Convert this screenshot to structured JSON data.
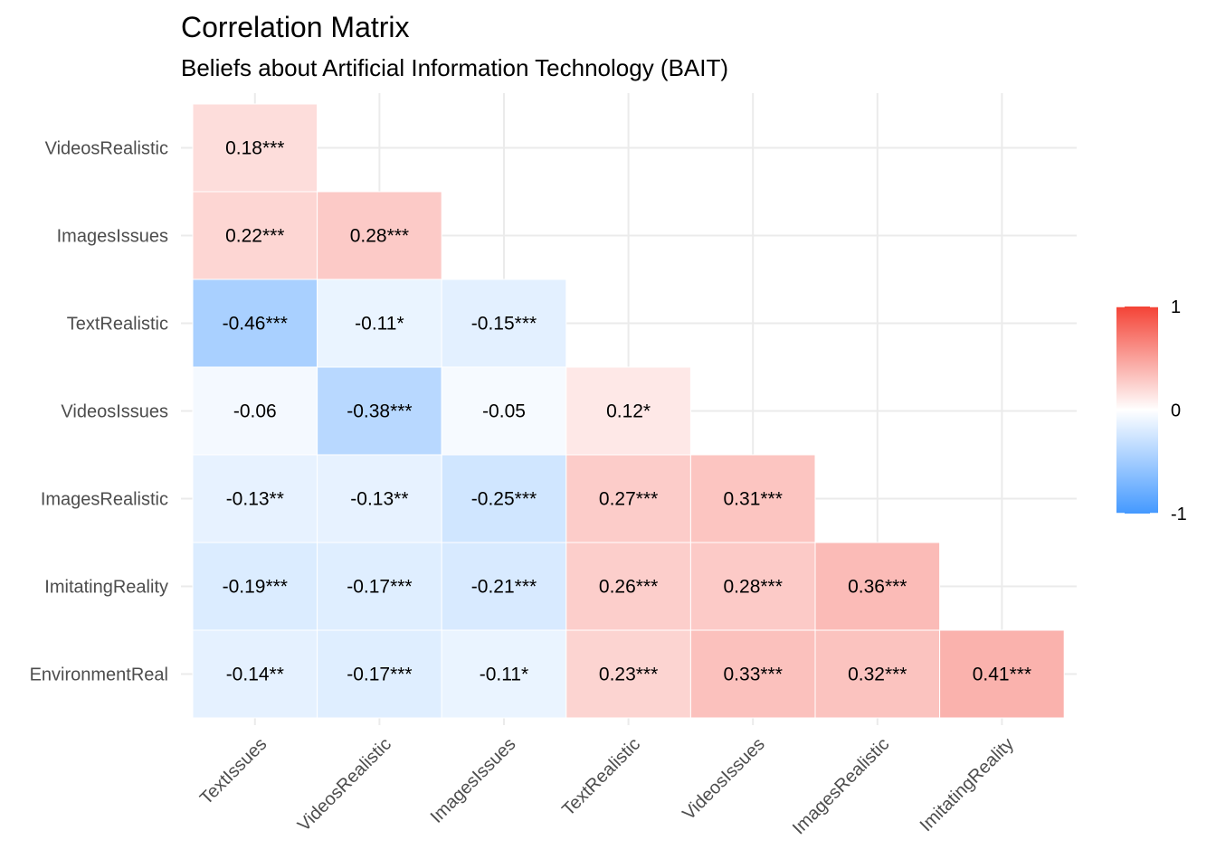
{
  "title": "Correlation Matrix",
  "subtitle": "Beliefs about Artificial Information Technology (BAIT)",
  "chart_data": {
    "type": "heatmap",
    "title": "Correlation Matrix",
    "subtitle": "Beliefs about Artificial Information Technology (BAIT)",
    "x_categories": [
      "TextIssues",
      "VideosRealistic",
      "ImagesIssues",
      "TextRealistic",
      "VideosIssues",
      "ImagesRealistic",
      "ImitatingReality"
    ],
    "y_categories": [
      "VideosRealistic",
      "ImagesIssues",
      "TextRealistic",
      "VideosIssues",
      "ImagesRealistic",
      "ImitatingReality",
      "EnvironmentReal"
    ],
    "cells": [
      {
        "x": "TextIssues",
        "y": "VideosRealistic",
        "value": 0.18,
        "label": "0.18***"
      },
      {
        "x": "TextIssues",
        "y": "ImagesIssues",
        "value": 0.22,
        "label": "0.22***"
      },
      {
        "x": "VideosRealistic",
        "y": "ImagesIssues",
        "value": 0.28,
        "label": "0.28***"
      },
      {
        "x": "TextIssues",
        "y": "TextRealistic",
        "value": -0.46,
        "label": "-0.46***"
      },
      {
        "x": "VideosRealistic",
        "y": "TextRealistic",
        "value": -0.11,
        "label": "-0.11*"
      },
      {
        "x": "ImagesIssues",
        "y": "TextRealistic",
        "value": -0.15,
        "label": "-0.15***"
      },
      {
        "x": "TextIssues",
        "y": "VideosIssues",
        "value": -0.06,
        "label": "-0.06"
      },
      {
        "x": "VideosRealistic",
        "y": "VideosIssues",
        "value": -0.38,
        "label": "-0.38***"
      },
      {
        "x": "ImagesIssues",
        "y": "VideosIssues",
        "value": -0.05,
        "label": "-0.05"
      },
      {
        "x": "TextRealistic",
        "y": "VideosIssues",
        "value": 0.12,
        "label": "0.12*"
      },
      {
        "x": "TextIssues",
        "y": "ImagesRealistic",
        "value": -0.13,
        "label": "-0.13**"
      },
      {
        "x": "VideosRealistic",
        "y": "ImagesRealistic",
        "value": -0.13,
        "label": "-0.13**"
      },
      {
        "x": "ImagesIssues",
        "y": "ImagesRealistic",
        "value": -0.25,
        "label": "-0.25***"
      },
      {
        "x": "TextRealistic",
        "y": "ImagesRealistic",
        "value": 0.27,
        "label": "0.27***"
      },
      {
        "x": "VideosIssues",
        "y": "ImagesRealistic",
        "value": 0.31,
        "label": "0.31***"
      },
      {
        "x": "TextIssues",
        "y": "ImitatingReality",
        "value": -0.19,
        "label": "-0.19***"
      },
      {
        "x": "VideosRealistic",
        "y": "ImitatingReality",
        "value": -0.17,
        "label": "-0.17***"
      },
      {
        "x": "ImagesIssues",
        "y": "ImitatingReality",
        "value": -0.21,
        "label": "-0.21***"
      },
      {
        "x": "TextRealistic",
        "y": "ImitatingReality",
        "value": 0.26,
        "label": "0.26***"
      },
      {
        "x": "VideosIssues",
        "y": "ImitatingReality",
        "value": 0.28,
        "label": "0.28***"
      },
      {
        "x": "ImagesRealistic",
        "y": "ImitatingReality",
        "value": 0.36,
        "label": "0.36***"
      },
      {
        "x": "TextIssues",
        "y": "EnvironmentReal",
        "value": -0.14,
        "label": "-0.14**"
      },
      {
        "x": "VideosRealistic",
        "y": "EnvironmentReal",
        "value": -0.17,
        "label": "-0.17***"
      },
      {
        "x": "ImagesIssues",
        "y": "EnvironmentReal",
        "value": -0.11,
        "label": "-0.11*"
      },
      {
        "x": "TextRealistic",
        "y": "EnvironmentReal",
        "value": 0.23,
        "label": "0.23***"
      },
      {
        "x": "VideosIssues",
        "y": "EnvironmentReal",
        "value": 0.33,
        "label": "0.33***"
      },
      {
        "x": "ImagesRealistic",
        "y": "EnvironmentReal",
        "value": 0.32,
        "label": "0.32***"
      },
      {
        "x": "ImitatingReality",
        "y": "EnvironmentReal",
        "value": 0.41,
        "label": "0.41***"
      }
    ],
    "legend": {
      "position": "right",
      "range": [
        -1,
        1
      ],
      "ticks": [
        "1",
        "0",
        "-1"
      ],
      "tick_values": [
        1,
        0,
        -1
      ],
      "low_color": "#4499ff",
      "mid_color": "#ffffff",
      "high_color": "#f44336"
    },
    "grid": true
  }
}
